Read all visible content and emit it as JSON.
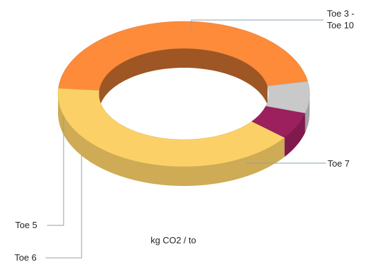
{
  "chart_data": {
    "type": "pie",
    "style": "3d-donut",
    "title": "",
    "caption": "kg CO2 / to",
    "slices": [
      {
        "label": "Toe 3 - Toe 10",
        "label_lines": [
          "Toe 3 -",
          "Toe 10"
        ],
        "value": 46,
        "color": "#fd8b3a"
      },
      {
        "label": "Toe 7",
        "value": 41,
        "color": "#fbd167"
      },
      {
        "label": "Toe 6",
        "value": 6,
        "color": "#9c1f5e"
      },
      {
        "label": "Toe 5",
        "value": 7,
        "color": "#c9c9c9"
      }
    ]
  }
}
